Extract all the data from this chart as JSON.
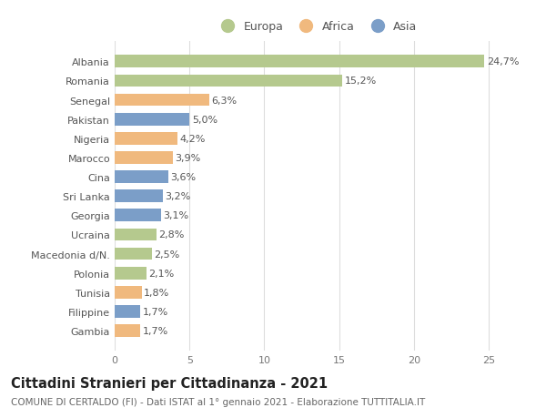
{
  "categories": [
    "Albania",
    "Romania",
    "Senegal",
    "Pakistan",
    "Nigeria",
    "Marocco",
    "Cina",
    "Sri Lanka",
    "Georgia",
    "Ucraina",
    "Macedonia d/N.",
    "Polonia",
    "Tunisia",
    "Filippine",
    "Gambia"
  ],
  "values": [
    24.7,
    15.2,
    6.3,
    5.0,
    4.2,
    3.9,
    3.6,
    3.2,
    3.1,
    2.8,
    2.5,
    2.1,
    1.8,
    1.7,
    1.7
  ],
  "labels": [
    "24,7%",
    "15,2%",
    "6,3%",
    "5,0%",
    "4,2%",
    "3,9%",
    "3,6%",
    "3,2%",
    "3,1%",
    "2,8%",
    "2,5%",
    "2,1%",
    "1,8%",
    "1,7%",
    "1,7%"
  ],
  "continents": [
    "Europa",
    "Europa",
    "Africa",
    "Asia",
    "Africa",
    "Africa",
    "Asia",
    "Asia",
    "Asia",
    "Europa",
    "Europa",
    "Europa",
    "Africa",
    "Asia",
    "Africa"
  ],
  "colors": {
    "Europa": "#b5c98e",
    "Africa": "#f0b97e",
    "Asia": "#7b9ec8"
  },
  "xlim": [
    0,
    27
  ],
  "xticks": [
    0,
    5,
    10,
    15,
    20,
    25
  ],
  "title": "Cittadini Stranieri per Cittadinanza - 2021",
  "subtitle": "COMUNE DI CERTALDO (FI) - Dati ISTAT al 1° gennaio 2021 - Elaborazione TUTTITALIA.IT",
  "background_color": "#ffffff",
  "grid_color": "#dddddd",
  "bar_height": 0.65,
  "label_fontsize": 8,
  "tick_fontsize": 8,
  "title_fontsize": 10.5,
  "subtitle_fontsize": 7.5
}
